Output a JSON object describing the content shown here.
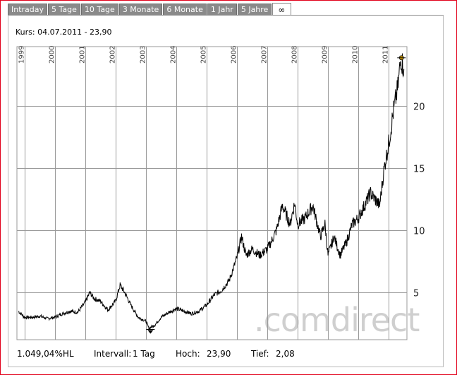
{
  "tabs": [
    "Intraday",
    "5 Tage",
    "10 Tage",
    "3 Monate",
    "6 Monate",
    "1 Jahr",
    "5 Jahre",
    "∞"
  ],
  "active_tab": "∞",
  "kurs_text": "Kurs: 04.07.2011 - 23,90",
  "watermark": ".comdirect",
  "footer": {
    "change": "1.049,04%HL",
    "interval_label": "Intervall:",
    "interval_value": "1 Tag",
    "high_label": "Hoch:",
    "high_value": "23,90",
    "low_label": "Tief:",
    "low_value": "2,08"
  },
  "colors": {
    "frame": "#e2001a",
    "tab": "#8a8a8a",
    "line": "#000000",
    "grid": "#999999",
    "marker": "#d4a000"
  },
  "chart_data": {
    "type": "line",
    "x_tick_labels": [
      "1999",
      "2000",
      "2001",
      "2002",
      "2003",
      "2004",
      "2005",
      "2006",
      "2007",
      "2008",
      "2009",
      "2010",
      "2011"
    ],
    "y_tick_labels": [
      "5",
      "10",
      "15",
      "20"
    ],
    "y_ticks": [
      5,
      10,
      15,
      20
    ],
    "ylim": [
      1.2,
      24.8
    ],
    "xlim": [
      1998.75,
      2011.6
    ],
    "grid": true,
    "series": [
      {
        "x": [
          1998.8,
          1999.0,
          1999.25,
          1999.5,
          1999.75,
          2000.0,
          2000.25,
          2000.5,
          2000.75,
          2001.0,
          2001.15,
          2001.3,
          2001.5,
          2001.75,
          2002.0,
          2002.15,
          2002.3,
          2002.5,
          2002.75,
          2003.0,
          2003.1,
          2003.3,
          2003.5,
          2003.75,
          2004.0,
          2004.25,
          2004.5,
          2004.75,
          2005.0,
          2005.25,
          2005.5,
          2005.75,
          2006.0,
          2006.15,
          2006.3,
          2006.5,
          2006.75,
          2007.0,
          2007.15,
          2007.3,
          2007.5,
          2007.75,
          2007.9,
          2008.0,
          2008.25,
          2008.5,
          2008.75,
          2008.9,
          2009.0,
          2009.2,
          2009.4,
          2009.6,
          2009.8,
          2010.0,
          2010.2,
          2010.4,
          2010.55,
          2010.7,
          2010.85,
          2011.0,
          2011.15,
          2011.3,
          2011.4,
          2011.5
        ],
        "y": [
          3.5,
          3.0,
          3.0,
          3.1,
          2.9,
          3.0,
          3.3,
          3.5,
          3.4,
          4.2,
          5.0,
          4.5,
          4.3,
          3.6,
          4.3,
          5.6,
          5.0,
          4.0,
          3.0,
          2.7,
          2.1,
          2.4,
          3.0,
          3.4,
          3.7,
          3.5,
          3.3,
          3.5,
          4.0,
          4.8,
          5.2,
          6.0,
          7.8,
          9.5,
          8.0,
          8.5,
          8.0,
          8.5,
          9.2,
          10.0,
          12.0,
          10.5,
          12.2,
          10.5,
          11.0,
          12.0,
          9.5,
          10.5,
          8.0,
          9.5,
          8.0,
          9.0,
          10.5,
          11.0,
          12.0,
          13.0,
          12.5,
          12.0,
          15.0,
          17.0,
          19.5,
          21.5,
          23.9,
          23.0
        ]
      }
    ],
    "high": 23.9,
    "low": 2.08
  }
}
